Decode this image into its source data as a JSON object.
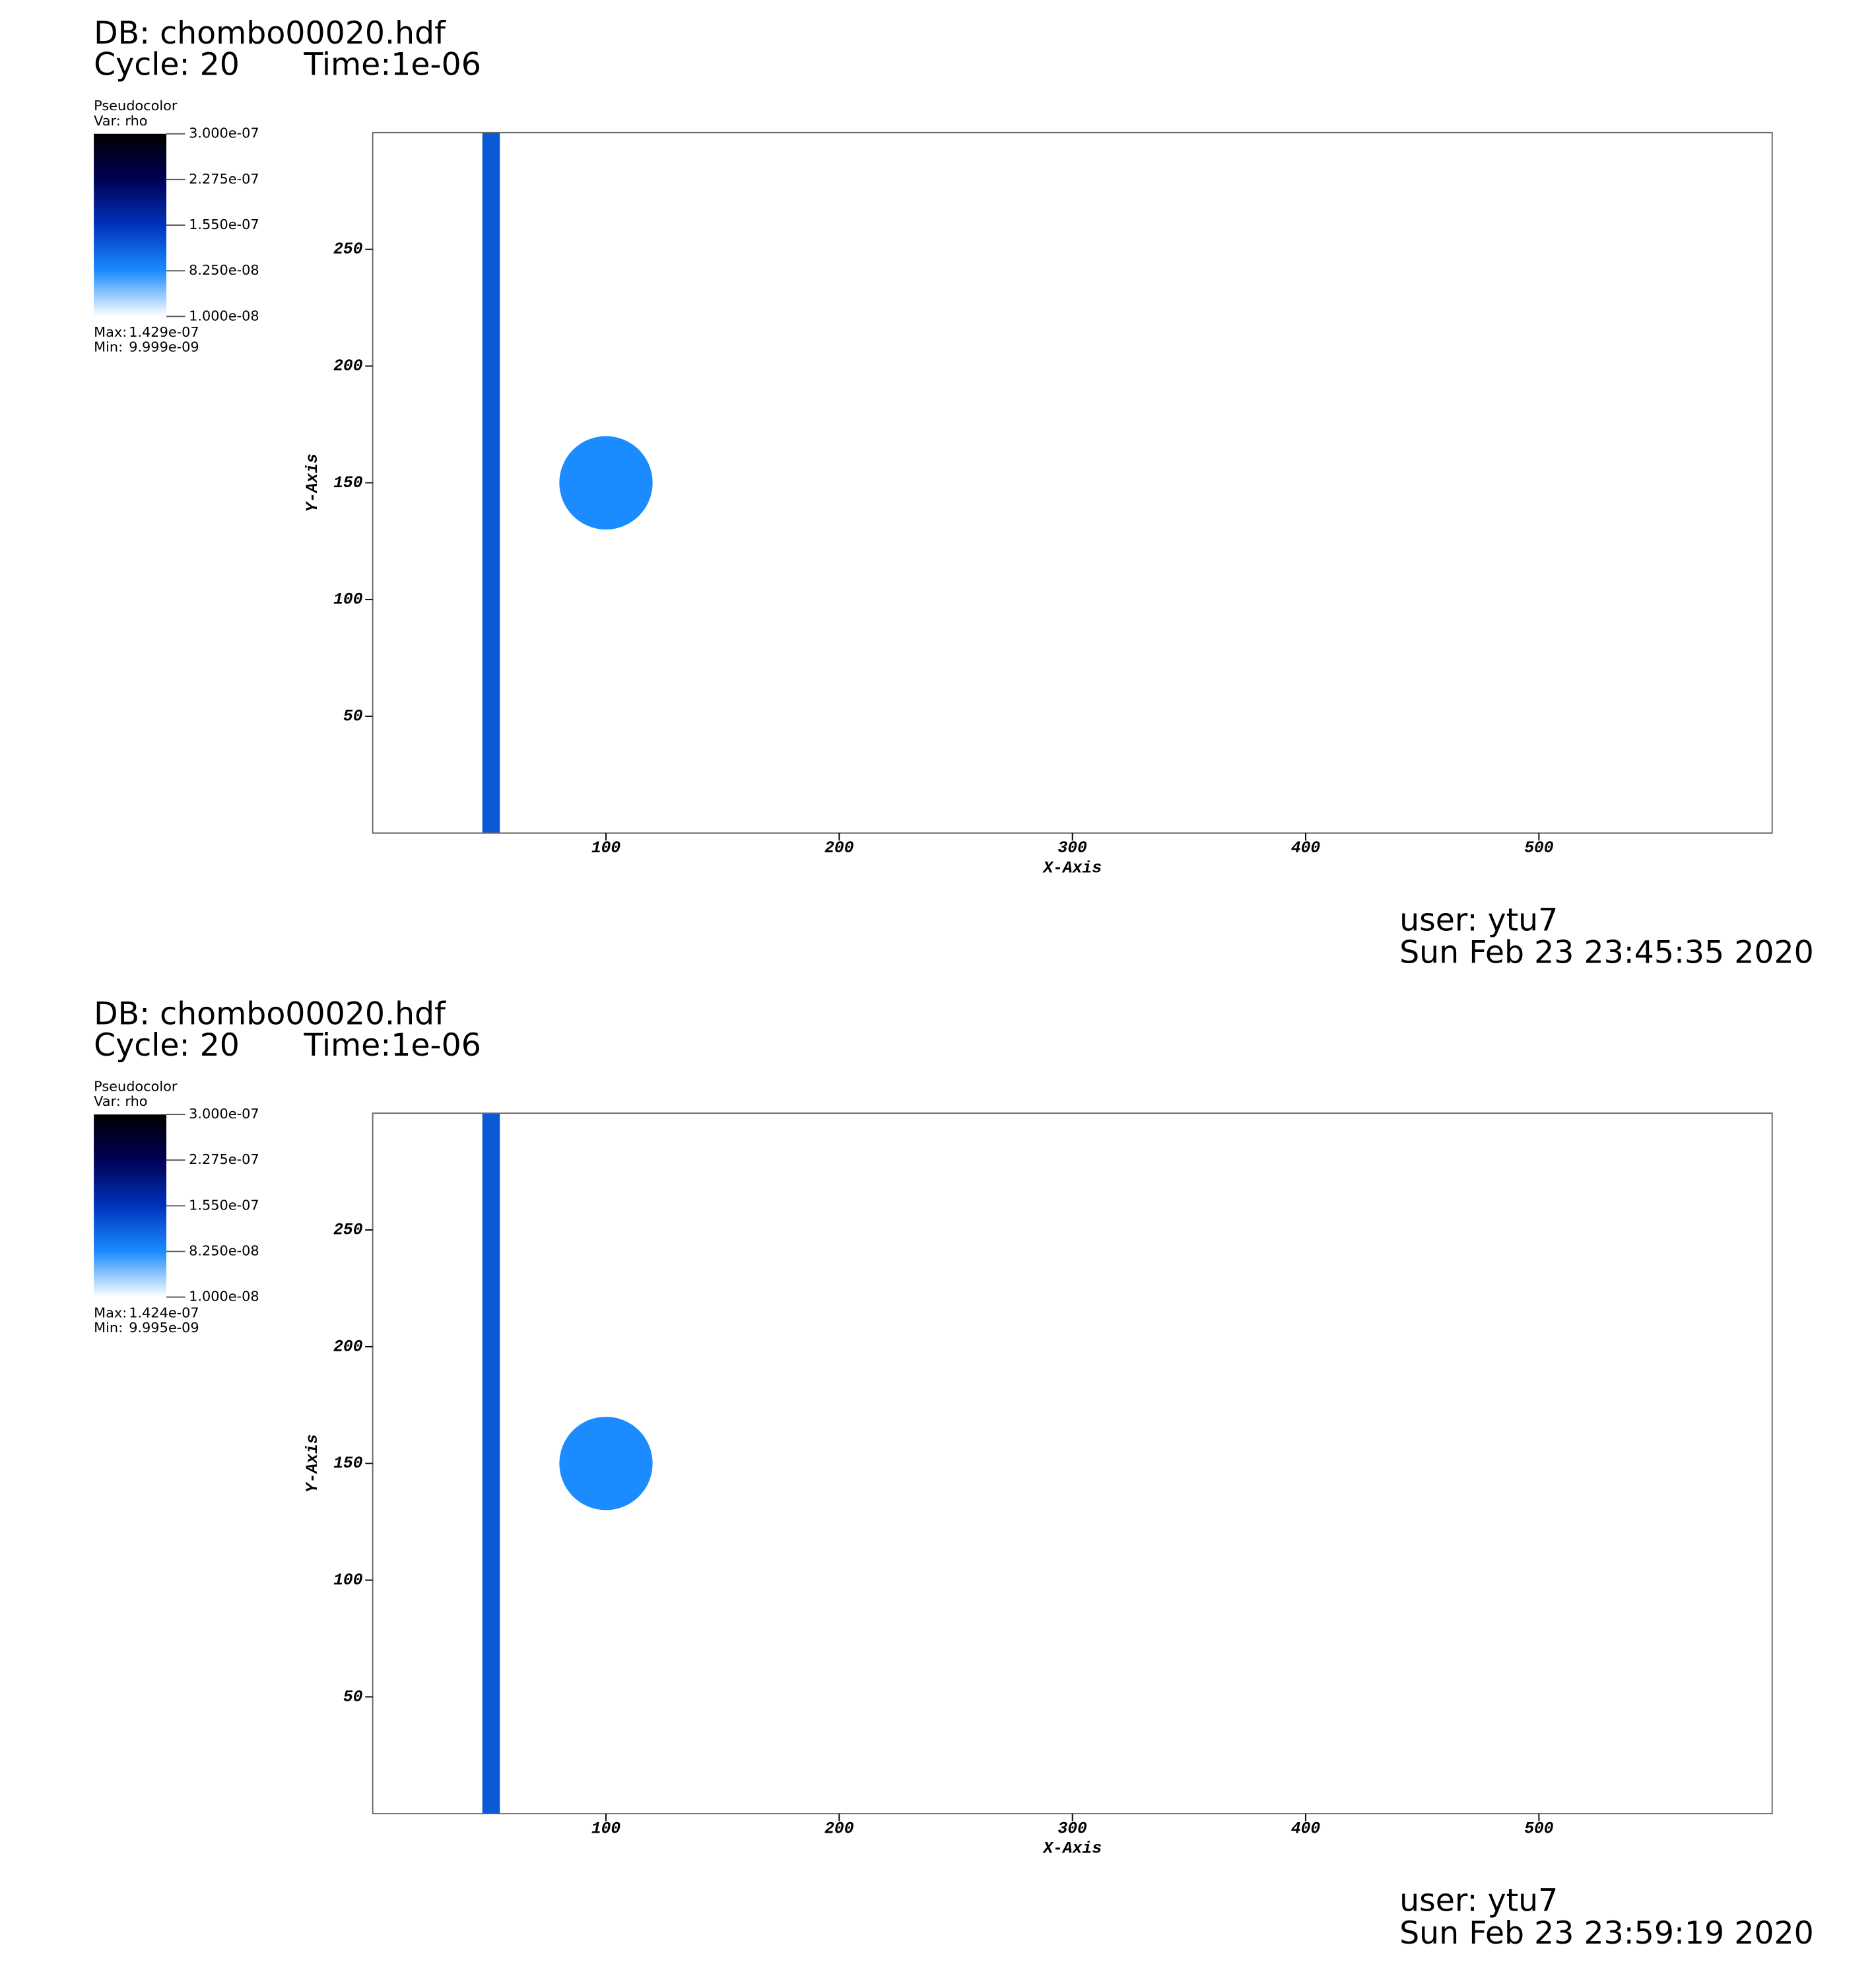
{
  "chart_data": [
    {
      "type": "pseudocolor",
      "db": "DB: chombo00020.hdf",
      "cycle": "Cycle: 20",
      "time": "Time:1e-06",
      "legend_title": "Pseudocolor",
      "legend_var": "Var: rho",
      "colorbar_lim": [
        1e-08,
        3e-07
      ],
      "colorbar_ticks": [
        {
          "value": 3e-07,
          "label": "3.000e-07"
        },
        {
          "value": 2.275e-07,
          "label": "2.275e-07"
        },
        {
          "value": 1.55e-07,
          "label": "1.550e-07"
        },
        {
          "value": 8.25e-08,
          "label": "8.250e-08"
        },
        {
          "value": 1e-08,
          "label": "1.000e-08"
        }
      ],
      "stats": [
        {
          "name": "Max:",
          "value": 1.429e-07,
          "label": "1.429e-07"
        },
        {
          "name": "Min:",
          "value": 9.999e-09,
          "label": "9.999e-09"
        }
      ],
      "xlabel": "X-Axis",
      "ylabel": "Y-Axis",
      "xlim": [
        0,
        600
      ],
      "ylim": [
        0,
        300
      ],
      "xticks": [
        100,
        200,
        300,
        400,
        500
      ],
      "yticks": [
        50,
        100,
        150,
        200,
        250
      ],
      "stripe": [
        47,
        54.5
      ],
      "stripe_color": "#0a5ad6",
      "circle": {
        "x": 100,
        "y": 150,
        "r": 20
      },
      "circle_color": "#1a8cff",
      "user": "user: ytu7",
      "date": "Sun Feb 23 23:45:35 2020"
    },
    {
      "type": "pseudocolor",
      "db": "DB: chombo00020.hdf",
      "cycle": "Cycle: 20",
      "time": "Time:1e-06",
      "legend_title": "Pseudocolor",
      "legend_var": "Var: rho",
      "colorbar_lim": [
        1e-08,
        3e-07
      ],
      "colorbar_ticks": [
        {
          "value": 3e-07,
          "label": "3.000e-07"
        },
        {
          "value": 2.275e-07,
          "label": "2.275e-07"
        },
        {
          "value": 1.55e-07,
          "label": "1.550e-07"
        },
        {
          "value": 8.25e-08,
          "label": "8.250e-08"
        },
        {
          "value": 1e-08,
          "label": "1.000e-08"
        }
      ],
      "stats": [
        {
          "name": "Max:",
          "value": 1.424e-07,
          "label": "1.424e-07"
        },
        {
          "name": "Min:",
          "value": 9.995e-09,
          "label": "9.995e-09"
        }
      ],
      "xlabel": "X-Axis",
      "ylabel": "Y-Axis",
      "xlim": [
        0,
        600
      ],
      "ylim": [
        0,
        300
      ],
      "xticks": [
        100,
        200,
        300,
        400,
        500
      ],
      "yticks": [
        50,
        100,
        150,
        200,
        250
      ],
      "stripe": [
        47,
        54.5
      ],
      "stripe_color": "#0a5ad6",
      "circle": {
        "x": 100,
        "y": 150,
        "r": 20
      },
      "circle_color": "#1a8cff",
      "user": "user: ytu7",
      "date": "Sun Feb 23 23:59:19 2020"
    }
  ]
}
